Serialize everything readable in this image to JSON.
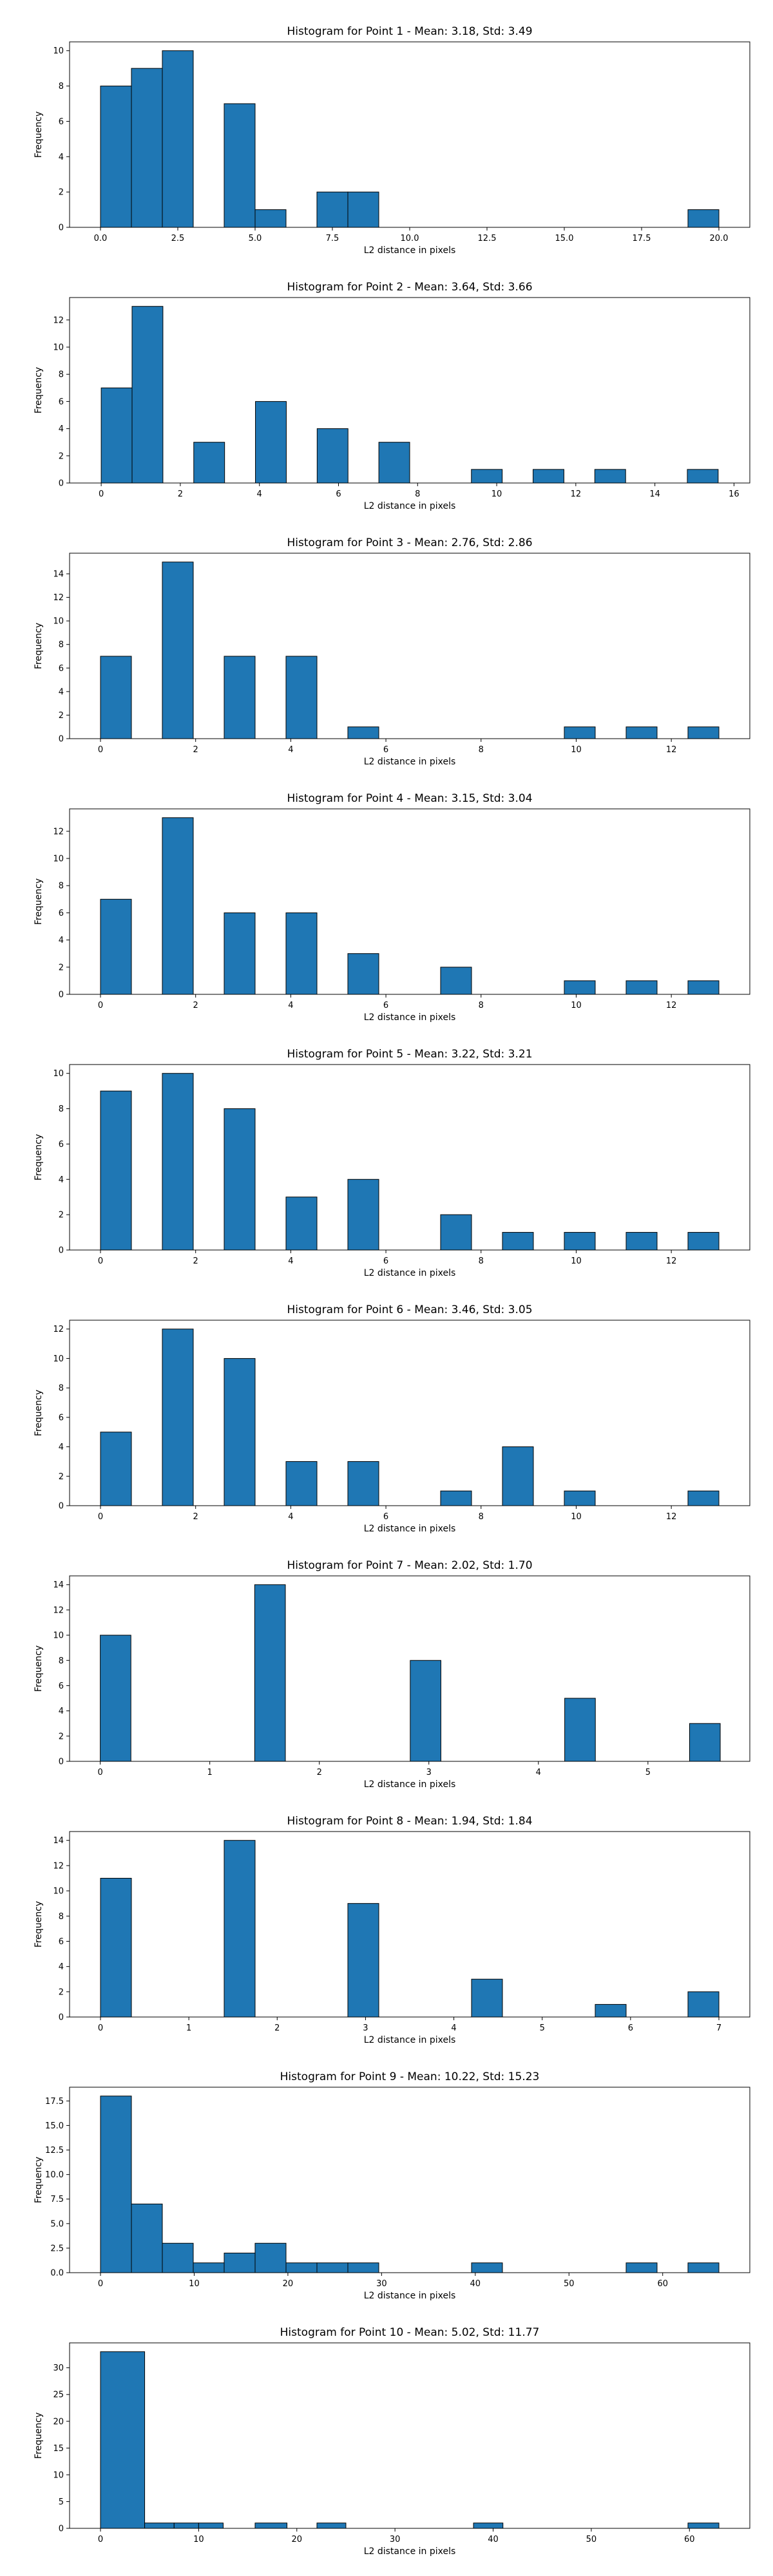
{
  "chart_data": [
    {
      "type": "bar",
      "title": "Histogram for Point 1 - Mean: 3.18, Std: 3.49",
      "xlabel": "L2 distance in pixels",
      "ylabel": "Frequency",
      "bar_color": "#1f77b4",
      "edge_color": "#000000",
      "grid": false,
      "xlim": [
        -1,
        21
      ],
      "ylim": [
        0,
        10.5
      ],
      "xticks": [
        0,
        2.5,
        5,
        7.5,
        10,
        12.5,
        15,
        17.5,
        20
      ],
      "xtick_labels": [
        "0.0",
        "2.5",
        "5.0",
        "7.5",
        "10.0",
        "12.5",
        "15.0",
        "17.5",
        "20.0"
      ],
      "yticks": [
        0,
        2,
        4,
        6,
        8,
        10
      ],
      "ytick_labels": [
        "0",
        "2",
        "4",
        "6",
        "8",
        "10"
      ],
      "bins": [
        {
          "x0": 0.0,
          "x1": 1.0,
          "count": 8
        },
        {
          "x0": 1.0,
          "x1": 2.0,
          "count": 9
        },
        {
          "x0": 2.0,
          "x1": 3.0,
          "count": 10
        },
        {
          "x0": 4.0,
          "x1": 5.0,
          "count": 7
        },
        {
          "x0": 5.0,
          "x1": 6.0,
          "count": 1
        },
        {
          "x0": 7.0,
          "x1": 8.0,
          "count": 2
        },
        {
          "x0": 8.0,
          "x1": 9.0,
          "count": 2
        },
        {
          "x0": 19.0,
          "x1": 20.0,
          "count": 1
        }
      ]
    },
    {
      "type": "bar",
      "title": "Histogram for Point 2 - Mean: 3.64, Std: 3.66",
      "xlabel": "L2 distance in pixels",
      "ylabel": "Frequency",
      "bar_color": "#1f77b4",
      "edge_color": "#000000",
      "grid": false,
      "xlim": [
        -0.8,
        16.4
      ],
      "ylim": [
        0,
        13.65
      ],
      "xticks": [
        0,
        2,
        4,
        6,
        8,
        10,
        12,
        14,
        16
      ],
      "xtick_labels": [
        "0",
        "2",
        "4",
        "6",
        "8",
        "10",
        "12",
        "14",
        "16"
      ],
      "yticks": [
        0,
        2,
        4,
        6,
        8,
        10,
        12
      ],
      "ytick_labels": [
        "0",
        "2",
        "4",
        "6",
        "8",
        "10",
        "12"
      ],
      "bins": [
        {
          "x0": 0.0,
          "x1": 0.78,
          "count": 7
        },
        {
          "x0": 0.78,
          "x1": 1.56,
          "count": 13
        },
        {
          "x0": 2.34,
          "x1": 3.12,
          "count": 3
        },
        {
          "x0": 3.9,
          "x1": 4.68,
          "count": 6
        },
        {
          "x0": 5.46,
          "x1": 6.24,
          "count": 4
        },
        {
          "x0": 7.02,
          "x1": 7.8,
          "count": 3
        },
        {
          "x0": 9.36,
          "x1": 10.14,
          "count": 1
        },
        {
          "x0": 10.92,
          "x1": 11.7,
          "count": 1
        },
        {
          "x0": 12.48,
          "x1": 13.26,
          "count": 1
        },
        {
          "x0": 14.82,
          "x1": 15.6,
          "count": 1
        }
      ]
    },
    {
      "type": "bar",
      "title": "Histogram for Point 3 - Mean: 2.76, Std: 2.86",
      "xlabel": "L2 distance in pixels",
      "ylabel": "Frequency",
      "bar_color": "#1f77b4",
      "edge_color": "#000000",
      "grid": false,
      "xlim": [
        -0.65,
        13.65
      ],
      "ylim": [
        0,
        15.75
      ],
      "xticks": [
        0,
        2,
        4,
        6,
        8,
        10,
        12
      ],
      "xtick_labels": [
        "0",
        "2",
        "4",
        "6",
        "8",
        "10",
        "12"
      ],
      "yticks": [
        0,
        2,
        4,
        6,
        8,
        10,
        12,
        14
      ],
      "ytick_labels": [
        "0",
        "2",
        "4",
        "6",
        "8",
        "10",
        "12",
        "14"
      ],
      "bins": [
        {
          "x0": 0.0,
          "x1": 0.65,
          "count": 7
        },
        {
          "x0": 1.3,
          "x1": 1.95,
          "count": 15
        },
        {
          "x0": 2.6,
          "x1": 3.25,
          "count": 7
        },
        {
          "x0": 3.9,
          "x1": 4.55,
          "count": 7
        },
        {
          "x0": 5.2,
          "x1": 5.85,
          "count": 1
        },
        {
          "x0": 9.75,
          "x1": 10.4,
          "count": 1
        },
        {
          "x0": 11.05,
          "x1": 11.7,
          "count": 1
        },
        {
          "x0": 12.35,
          "x1": 13.0,
          "count": 1
        }
      ]
    },
    {
      "type": "bar",
      "title": "Histogram for Point 4 - Mean: 3.15, Std: 3.04",
      "xlabel": "L2 distance in pixels",
      "ylabel": "Frequency",
      "bar_color": "#1f77b4",
      "edge_color": "#000000",
      "grid": false,
      "xlim": [
        -0.65,
        13.65
      ],
      "ylim": [
        0,
        13.65
      ],
      "xticks": [
        0,
        2,
        4,
        6,
        8,
        10,
        12
      ],
      "xtick_labels": [
        "0",
        "2",
        "4",
        "6",
        "8",
        "10",
        "12"
      ],
      "yticks": [
        0,
        2,
        4,
        6,
        8,
        10,
        12
      ],
      "ytick_labels": [
        "0",
        "2",
        "4",
        "6",
        "8",
        "10",
        "12"
      ],
      "bins": [
        {
          "x0": 0.0,
          "x1": 0.65,
          "count": 7
        },
        {
          "x0": 1.3,
          "x1": 1.95,
          "count": 13
        },
        {
          "x0": 2.6,
          "x1": 3.25,
          "count": 6
        },
        {
          "x0": 3.9,
          "x1": 4.55,
          "count": 6
        },
        {
          "x0": 5.2,
          "x1": 5.85,
          "count": 3
        },
        {
          "x0": 7.15,
          "x1": 7.8,
          "count": 2
        },
        {
          "x0": 9.75,
          "x1": 10.4,
          "count": 1
        },
        {
          "x0": 11.05,
          "x1": 11.7,
          "count": 1
        },
        {
          "x0": 12.35,
          "x1": 13.0,
          "count": 1
        }
      ]
    },
    {
      "type": "bar",
      "title": "Histogram for Point 5 - Mean: 3.22, Std: 3.21",
      "xlabel": "L2 distance in pixels",
      "ylabel": "Frequency",
      "bar_color": "#1f77b4",
      "edge_color": "#000000",
      "grid": false,
      "xlim": [
        -0.65,
        13.65
      ],
      "ylim": [
        0,
        10.5
      ],
      "xticks": [
        0,
        2,
        4,
        6,
        8,
        10,
        12
      ],
      "xtick_labels": [
        "0",
        "2",
        "4",
        "6",
        "8",
        "10",
        "12"
      ],
      "yticks": [
        0,
        2,
        4,
        6,
        8,
        10
      ],
      "ytick_labels": [
        "0",
        "2",
        "4",
        "6",
        "8",
        "10"
      ],
      "bins": [
        {
          "x0": 0.0,
          "x1": 0.65,
          "count": 9
        },
        {
          "x0": 1.3,
          "x1": 1.95,
          "count": 10
        },
        {
          "x0": 2.6,
          "x1": 3.25,
          "count": 8
        },
        {
          "x0": 3.9,
          "x1": 4.55,
          "count": 3
        },
        {
          "x0": 5.2,
          "x1": 5.85,
          "count": 4
        },
        {
          "x0": 7.15,
          "x1": 7.8,
          "count": 2
        },
        {
          "x0": 8.45,
          "x1": 9.1,
          "count": 1
        },
        {
          "x0": 9.75,
          "x1": 10.4,
          "count": 1
        },
        {
          "x0": 11.05,
          "x1": 11.7,
          "count": 1
        },
        {
          "x0": 12.35,
          "x1": 13.0,
          "count": 1
        }
      ]
    },
    {
      "type": "bar",
      "title": "Histogram for Point 6 - Mean: 3.46, Std: 3.05",
      "xlabel": "L2 distance in pixels",
      "ylabel": "Frequency",
      "bar_color": "#1f77b4",
      "edge_color": "#000000",
      "grid": false,
      "xlim": [
        -0.65,
        13.65
      ],
      "ylim": [
        0,
        12.6
      ],
      "xticks": [
        0,
        2,
        4,
        6,
        8,
        10,
        12
      ],
      "xtick_labels": [
        "0",
        "2",
        "4",
        "6",
        "8",
        "10",
        "12"
      ],
      "yticks": [
        0,
        2,
        4,
        6,
        8,
        10,
        12
      ],
      "ytick_labels": [
        "0",
        "2",
        "4",
        "6",
        "8",
        "10",
        "12"
      ],
      "bins": [
        {
          "x0": 0.0,
          "x1": 0.65,
          "count": 5
        },
        {
          "x0": 1.3,
          "x1": 1.95,
          "count": 12
        },
        {
          "x0": 2.6,
          "x1": 3.25,
          "count": 10
        },
        {
          "x0": 3.9,
          "x1": 4.55,
          "count": 3
        },
        {
          "x0": 5.2,
          "x1": 5.85,
          "count": 3
        },
        {
          "x0": 7.15,
          "x1": 7.8,
          "count": 1
        },
        {
          "x0": 8.45,
          "x1": 9.1,
          "count": 4
        },
        {
          "x0": 9.75,
          "x1": 10.4,
          "count": 1
        },
        {
          "x0": 12.35,
          "x1": 13.0,
          "count": 1
        }
      ]
    },
    {
      "type": "bar",
      "title": "Histogram for Point 7 - Mean: 2.02, Std: 1.70",
      "xlabel": "L2 distance in pixels",
      "ylabel": "Frequency",
      "bar_color": "#1f77b4",
      "edge_color": "#000000",
      "grid": false,
      "xlim": [
        -0.28,
        5.93
      ],
      "ylim": [
        0,
        14.7
      ],
      "xticks": [
        0,
        1,
        2,
        3,
        4,
        5
      ],
      "xtick_labels": [
        "0",
        "1",
        "2",
        "3",
        "4",
        "5"
      ],
      "yticks": [
        0,
        2,
        4,
        6,
        8,
        10,
        12,
        14
      ],
      "ytick_labels": [
        "0",
        "2",
        "4",
        "6",
        "8",
        "10",
        "12",
        "14"
      ],
      "bins": [
        {
          "x0": 0.0,
          "x1": 0.28,
          "count": 10
        },
        {
          "x0": 1.41,
          "x1": 1.69,
          "count": 14
        },
        {
          "x0": 2.83,
          "x1": 3.11,
          "count": 8
        },
        {
          "x0": 4.24,
          "x1": 4.52,
          "count": 5
        },
        {
          "x0": 5.38,
          "x1": 5.66,
          "count": 3
        }
      ]
    },
    {
      "type": "bar",
      "title": "Histogram for Point 8 - Mean: 1.94, Std: 1.84",
      "xlabel": "L2 distance in pixels",
      "ylabel": "Frequency",
      "bar_color": "#1f77b4",
      "edge_color": "#000000",
      "grid": false,
      "xlim": [
        -0.35,
        7.35
      ],
      "ylim": [
        0,
        14.7
      ],
      "xticks": [
        0,
        1,
        2,
        3,
        4,
        5,
        6,
        7
      ],
      "xtick_labels": [
        "0",
        "1",
        "2",
        "3",
        "4",
        "5",
        "6",
        "7"
      ],
      "yticks": [
        0,
        2,
        4,
        6,
        8,
        10,
        12,
        14
      ],
      "ytick_labels": [
        "0",
        "2",
        "4",
        "6",
        "8",
        "10",
        "12",
        "14"
      ],
      "bins": [
        {
          "x0": 0.0,
          "x1": 0.35,
          "count": 11
        },
        {
          "x0": 1.4,
          "x1": 1.75,
          "count": 14
        },
        {
          "x0": 2.8,
          "x1": 3.15,
          "count": 9
        },
        {
          "x0": 4.2,
          "x1": 4.55,
          "count": 3
        },
        {
          "x0": 5.6,
          "x1": 5.95,
          "count": 1
        },
        {
          "x0": 6.65,
          "x1": 7.0,
          "count": 2
        }
      ]
    },
    {
      "type": "bar",
      "title": "Histogram for Point 9 - Mean: 10.22, Std: 15.23",
      "xlabel": "L2 distance in pixels",
      "ylabel": "Frequency",
      "bar_color": "#1f77b4",
      "edge_color": "#000000",
      "grid": false,
      "xlim": [
        -3.3,
        69.3
      ],
      "ylim": [
        0,
        18.9
      ],
      "xticks": [
        0,
        10,
        20,
        30,
        40,
        50,
        60
      ],
      "xtick_labels": [
        "0",
        "10",
        "20",
        "30",
        "40",
        "50",
        "60"
      ],
      "yticks": [
        0,
        2.5,
        5,
        7.5,
        10,
        12.5,
        15,
        17.5
      ],
      "ytick_labels": [
        "0.0",
        "2.5",
        "5.0",
        "7.5",
        "10.0",
        "12.5",
        "15.0",
        "17.5"
      ],
      "bins": [
        {
          "x0": 0.0,
          "x1": 3.3,
          "count": 18
        },
        {
          "x0": 3.3,
          "x1": 6.6,
          "count": 7
        },
        {
          "x0": 6.6,
          "x1": 9.9,
          "count": 3
        },
        {
          "x0": 9.9,
          "x1": 13.2,
          "count": 1
        },
        {
          "x0": 13.2,
          "x1": 16.5,
          "count": 2
        },
        {
          "x0": 16.5,
          "x1": 19.8,
          "count": 3
        },
        {
          "x0": 19.8,
          "x1": 23.1,
          "count": 1
        },
        {
          "x0": 23.1,
          "x1": 26.4,
          "count": 1
        },
        {
          "x0": 26.4,
          "x1": 29.7,
          "count": 1
        },
        {
          "x0": 39.6,
          "x1": 42.9,
          "count": 1
        },
        {
          "x0": 56.1,
          "x1": 59.4,
          "count": 1
        },
        {
          "x0": 62.7,
          "x1": 66.0,
          "count": 1
        }
      ]
    },
    {
      "type": "bar",
      "title": "Histogram for Point 10 - Mean: 5.02, Std: 11.77",
      "xlabel": "L2 distance in pixels",
      "ylabel": "Frequency",
      "bar_color": "#1f77b4",
      "edge_color": "#000000",
      "grid": false,
      "xlim": [
        -3.15,
        66.15
      ],
      "ylim": [
        0,
        34.65
      ],
      "xticks": [
        0,
        10,
        20,
        30,
        40,
        50,
        60
      ],
      "xtick_labels": [
        "0",
        "10",
        "20",
        "30",
        "40",
        "50",
        "60"
      ],
      "yticks": [
        0,
        5,
        10,
        15,
        20,
        25,
        30
      ],
      "ytick_labels": [
        "0",
        "5",
        "10",
        "15",
        "20",
        "25",
        "30"
      ],
      "bins": [
        {
          "x0": 0.0,
          "x1": 4.5,
          "count": 33
        },
        {
          "x0": 4.5,
          "x1": 7.5,
          "count": 1
        },
        {
          "x0": 7.5,
          "x1": 10.0,
          "count": 1
        },
        {
          "x0": 10.0,
          "x1": 12.5,
          "count": 1
        },
        {
          "x0": 15.75,
          "x1": 19.0,
          "count": 1
        },
        {
          "x0": 22.05,
          "x1": 25.0,
          "count": 1
        },
        {
          "x0": 38.0,
          "x1": 41.0,
          "count": 1
        },
        {
          "x0": 59.85,
          "x1": 63.0,
          "count": 1
        }
      ]
    }
  ]
}
